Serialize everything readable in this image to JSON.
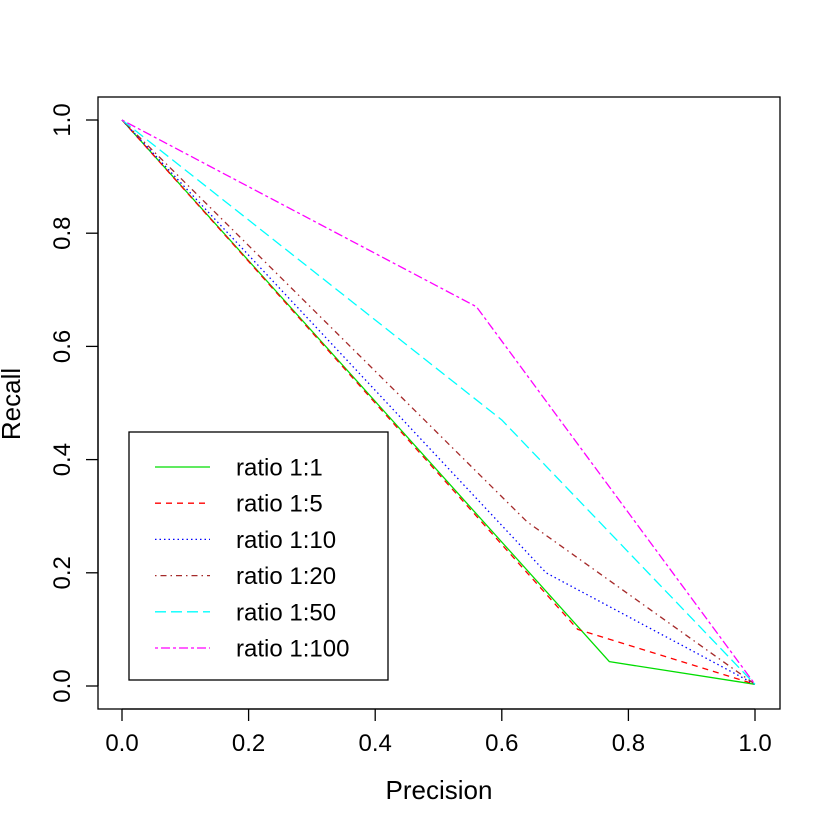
{
  "chart_data": {
    "type": "line",
    "title": "",
    "xlabel": "Precision",
    "ylabel": "Recall",
    "xlim": [
      0,
      1
    ],
    "ylim": [
      0,
      1
    ],
    "x_ticks": [
      "0.0",
      "0.2",
      "0.4",
      "0.6",
      "0.8",
      "1.0"
    ],
    "y_ticks": [
      "0.0",
      "0.2",
      "0.4",
      "0.6",
      "0.8",
      "1.0"
    ],
    "grid": false,
    "legend_position": "bottom-left",
    "series": [
      {
        "name": "ratio 1:1",
        "color": "#00dd00",
        "dash": "solid",
        "x": [
          0.0,
          0.77,
          1.0
        ],
        "y": [
          1.0,
          0.043,
          0.003
        ]
      },
      {
        "name": "ratio 1:5",
        "color": "#ff0000",
        "dash": "dashed",
        "x": [
          0.0,
          0.72,
          1.0
        ],
        "y": [
          1.0,
          0.1,
          0.003
        ]
      },
      {
        "name": "ratio 1:10",
        "color": "#0000ff",
        "dash": "dotted",
        "x": [
          0.0,
          0.67,
          1.0
        ],
        "y": [
          1.0,
          0.2,
          0.003
        ]
      },
      {
        "name": "ratio 1:20",
        "color": "#a52a2a",
        "dash": "dotdash",
        "x": [
          0.0,
          0.64,
          1.0
        ],
        "y": [
          1.0,
          0.29,
          0.003
        ]
      },
      {
        "name": "ratio 1:50",
        "color": "#00ffff",
        "dash": "longdash",
        "x": [
          0.0,
          0.6,
          1.0
        ],
        "y": [
          1.0,
          0.47,
          0.003
        ]
      },
      {
        "name": "ratio 1:100",
        "color": "#ff00ff",
        "dash": "twodash",
        "x": [
          0.0,
          0.56,
          1.0
        ],
        "y": [
          1.0,
          0.67,
          0.003
        ]
      }
    ]
  }
}
